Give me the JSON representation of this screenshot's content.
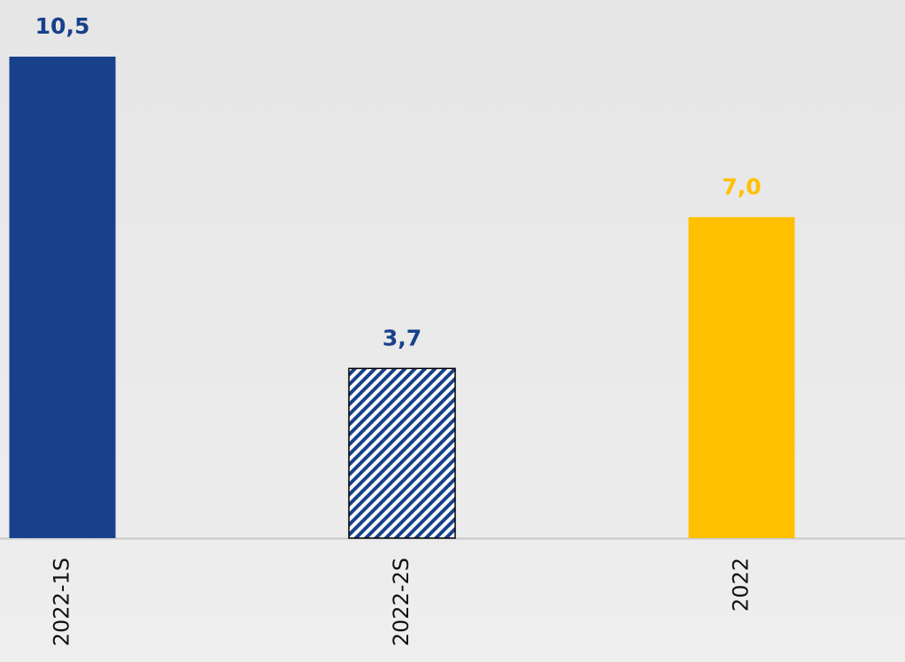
{
  "chart_data": {
    "type": "bar",
    "categories": [
      "2022-1S",
      "2022-2S",
      "2022"
    ],
    "values": [
      10.5,
      3.7,
      7.0
    ],
    "value_labels": [
      "10,5",
      "3,7",
      "7,0"
    ],
    "colors": [
      "#17418a",
      "#17418a",
      "#ffc000"
    ],
    "hatch": [
      false,
      true,
      false
    ]
  }
}
